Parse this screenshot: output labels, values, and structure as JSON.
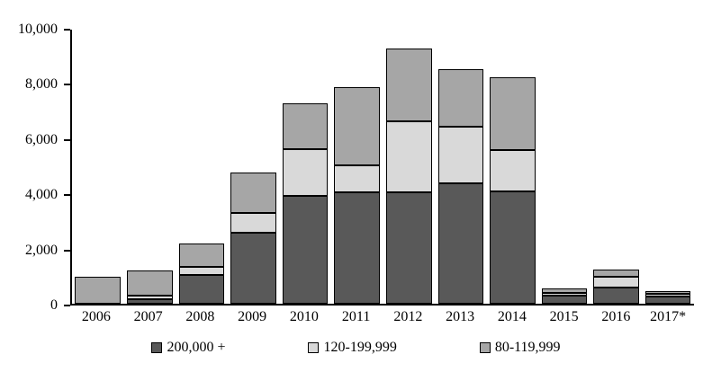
{
  "chart_data": {
    "type": "bar",
    "stacked": true,
    "title": "",
    "xlabel": "",
    "ylabel": "",
    "grid": false,
    "legend_position": "bottom",
    "ylim": [
      0,
      10000
    ],
    "yticks": [
      0,
      2000,
      4000,
      6000,
      8000,
      10000
    ],
    "ytick_labels": [
      "0",
      "2,000",
      "4,000",
      "6,000",
      "8,000",
      "10,000"
    ],
    "categories": [
      "2006",
      "2007",
      "2008",
      "2009",
      "2010",
      "2011",
      "2012",
      "2013",
      "2014",
      "2015",
      "2016",
      "2017*"
    ],
    "series": [
      {
        "name": "200,000 +",
        "color": "#595959",
        "values": [
          0,
          150,
          1050,
          2600,
          3950,
          4050,
          4050,
          4400,
          4100,
          300,
          600,
          250
        ]
      },
      {
        "name": "120-199,999",
        "color": "#d9d9d9",
        "values": [
          0,
          150,
          300,
          700,
          1700,
          1000,
          2600,
          2050,
          1500,
          100,
          400,
          100
        ]
      },
      {
        "name": "80-119,999",
        "color": "#a6a6a6",
        "values": [
          1000,
          900,
          850,
          1500,
          1650,
          2850,
          2650,
          2100,
          2650,
          150,
          250,
          100
        ]
      }
    ]
  }
}
